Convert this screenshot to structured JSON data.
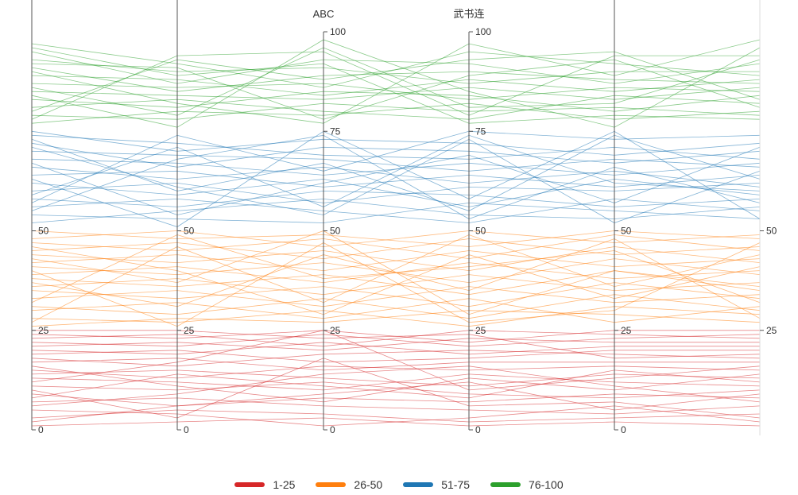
{
  "chart_data": {
    "type": "parallel-coordinates",
    "axes": [
      {
        "name": "",
        "range": [
          0,
          100
        ],
        "ticks": [
          "0",
          "25",
          "50"
        ]
      },
      {
        "name": "",
        "range": [
          0,
          100
        ],
        "ticks": [
          "0",
          "25",
          "50"
        ]
      },
      {
        "name": "ABC",
        "range": [
          0,
          100
        ],
        "ticks": [
          "0",
          "25",
          "50",
          "75",
          "100"
        ]
      },
      {
        "name": "武书连",
        "range": [
          0,
          100
        ],
        "ticks": [
          "0",
          "25",
          "50",
          "75",
          "100"
        ]
      },
      {
        "name": "",
        "range": [
          0,
          100
        ],
        "ticks": [
          "0",
          "25",
          "50"
        ]
      },
      {
        "name": "",
        "range": [
          0,
          100
        ],
        "ticks": [
          "25",
          "50"
        ]
      }
    ],
    "legend_position": "bottom",
    "legend": [
      {
        "label": "1-25",
        "color": "#d62728"
      },
      {
        "label": "26-50",
        "color": "#ff7f0e"
      },
      {
        "label": "51-75",
        "color": "#1f77b4"
      },
      {
        "label": "76-100",
        "color": "#2ca02c"
      }
    ],
    "series": [
      {
        "group": 0,
        "lines": [
          [
            1,
            2,
            3,
            1,
            2,
            1
          ],
          [
            3,
            5,
            4,
            2,
            3,
            4
          ],
          [
            5,
            4,
            1,
            3,
            6,
            2
          ],
          [
            7,
            8,
            6,
            5,
            4,
            6
          ],
          [
            9,
            6,
            8,
            7,
            9,
            8
          ],
          [
            11,
            10,
            12,
            9,
            8,
            10
          ],
          [
            13,
            12,
            10,
            14,
            12,
            11
          ],
          [
            14,
            15,
            13,
            11,
            14,
            13
          ],
          [
            15,
            13,
            16,
            15,
            16,
            15
          ],
          [
            17,
            18,
            15,
            17,
            17,
            17
          ],
          [
            18,
            16,
            19,
            20,
            19,
            18
          ],
          [
            19,
            20,
            17,
            18,
            20,
            20
          ],
          [
            20,
            19,
            22,
            19,
            21,
            21
          ],
          [
            21,
            22,
            20,
            23,
            22,
            22
          ],
          [
            22,
            21,
            24,
            21,
            23,
            24
          ],
          [
            23,
            24,
            21,
            25,
            24,
            23
          ],
          [
            24,
            23,
            25,
            22,
            25,
            25
          ],
          [
            25,
            25,
            23,
            24,
            18,
            19
          ],
          [
            12,
            17,
            25,
            10,
            13,
            16
          ],
          [
            6,
            9,
            14,
            16,
            11,
            7
          ],
          [
            16,
            11,
            7,
            13,
            10,
            14
          ],
          [
            8,
            14,
            11,
            8,
            15,
            12
          ],
          [
            2,
            6,
            9,
            12,
            5,
            9
          ],
          [
            10,
            3,
            18,
            6,
            7,
            3
          ]
        ]
      },
      {
        "group": 1,
        "lines": [
          [
            26,
            28,
            27,
            30,
            29,
            27
          ],
          [
            28,
            27,
            30,
            26,
            31,
            29
          ],
          [
            30,
            32,
            28,
            33,
            27,
            31
          ],
          [
            31,
            29,
            33,
            28,
            34,
            30
          ],
          [
            33,
            35,
            31,
            36,
            32,
            34
          ],
          [
            35,
            33,
            36,
            31,
            37,
            33
          ],
          [
            36,
            38,
            34,
            39,
            35,
            37
          ],
          [
            38,
            36,
            39,
            34,
            40,
            36
          ],
          [
            39,
            41,
            37,
            42,
            38,
            40
          ],
          [
            41,
            39,
            42,
            37,
            43,
            39
          ],
          [
            42,
            44,
            40,
            45,
            41,
            43
          ],
          [
            44,
            42,
            45,
            40,
            46,
            42
          ],
          [
            45,
            47,
            43,
            48,
            44,
            46
          ],
          [
            47,
            45,
            48,
            43,
            49,
            45
          ],
          [
            48,
            50,
            46,
            50,
            47,
            49
          ],
          [
            50,
            48,
            49,
            46,
            50,
            48
          ],
          [
            43,
            37,
            50,
            29,
            40,
            35
          ],
          [
            27,
            46,
            32,
            49,
            36,
            44
          ],
          [
            37,
            31,
            44,
            35,
            48,
            28
          ],
          [
            46,
            40,
            29,
            44,
            33,
            41
          ],
          [
            32,
            49,
            38,
            41,
            45,
            32
          ],
          [
            40,
            26,
            47,
            27,
            30,
            47
          ]
        ]
      },
      {
        "group": 2,
        "lines": [
          [
            52,
            55,
            58,
            54,
            53,
            56
          ],
          [
            54,
            53,
            52,
            57,
            55,
            53
          ],
          [
            56,
            58,
            55,
            52,
            58,
            55
          ],
          [
            58,
            56,
            60,
            59,
            56,
            58
          ],
          [
            60,
            62,
            57,
            61,
            60,
            62
          ],
          [
            62,
            59,
            63,
            56,
            63,
            59
          ],
          [
            64,
            65,
            61,
            64,
            61,
            64
          ],
          [
            66,
            63,
            66,
            62,
            65,
            61
          ],
          [
            68,
            67,
            64,
            67,
            64,
            67
          ],
          [
            70,
            69,
            68,
            65,
            68,
            66
          ],
          [
            72,
            66,
            71,
            70,
            67,
            70
          ],
          [
            74,
            72,
            69,
            68,
            71,
            68
          ],
          [
            75,
            70,
            73,
            72,
            69,
            72
          ],
          [
            57,
            74,
            65,
            75,
            73,
            74
          ],
          [
            63,
            51,
            75,
            58,
            75,
            53
          ],
          [
            71,
            61,
            54,
            73,
            52,
            65
          ],
          [
            55,
            68,
            74,
            53,
            66,
            57
          ],
          [
            67,
            54,
            62,
            69,
            57,
            71
          ],
          [
            59,
            71,
            56,
            74,
            62,
            60
          ],
          [
            73,
            60,
            67,
            55,
            74,
            63
          ]
        ]
      },
      {
        "group": 3,
        "lines": [
          [
            77,
            80,
            79,
            82,
            78,
            80
          ],
          [
            79,
            78,
            82,
            80,
            81,
            79
          ],
          [
            81,
            83,
            80,
            78,
            84,
            82
          ],
          [
            83,
            81,
            85,
            84,
            80,
            84
          ],
          [
            85,
            84,
            83,
            86,
            83,
            86
          ],
          [
            87,
            86,
            87,
            83,
            86,
            85
          ],
          [
            89,
            88,
            84,
            88,
            85,
            88
          ],
          [
            91,
            85,
            89,
            90,
            88,
            87
          ],
          [
            93,
            90,
            91,
            87,
            90,
            90
          ],
          [
            95,
            87,
            93,
            92,
            87,
            92
          ],
          [
            97,
            92,
            86,
            95,
            92,
            89
          ],
          [
            78,
            94,
            95,
            79,
            94,
            94
          ],
          [
            84,
            76,
            98,
            85,
            76,
            96
          ],
          [
            90,
            82,
            77,
            97,
            89,
            98
          ],
          [
            96,
            89,
            92,
            77,
            79,
            78
          ],
          [
            80,
            93,
            88,
            93,
            95,
            83
          ],
          [
            86,
            79,
            96,
            81,
            82,
            93
          ],
          [
            92,
            91,
            78,
            89,
            93,
            81
          ]
        ]
      }
    ]
  }
}
